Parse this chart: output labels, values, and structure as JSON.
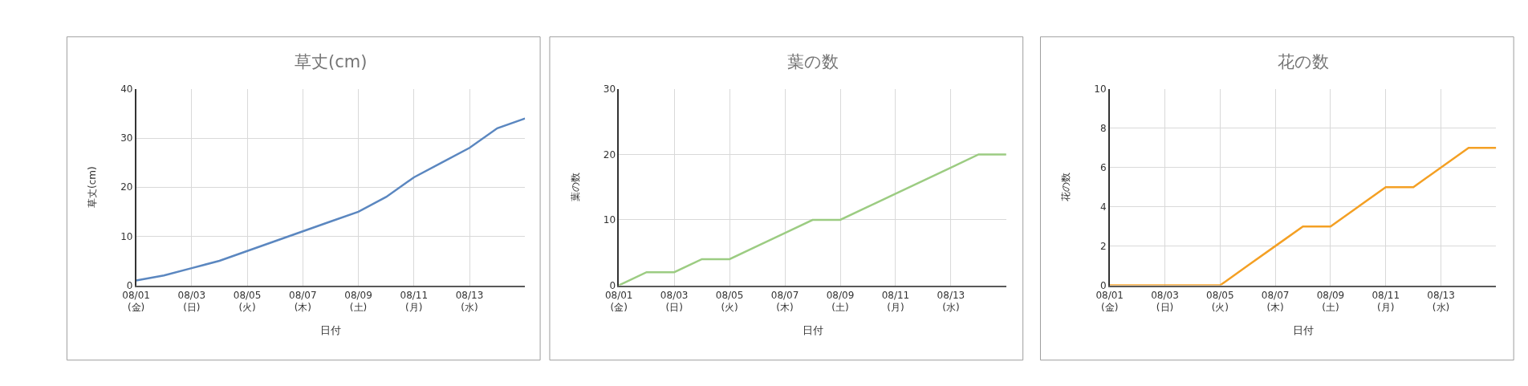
{
  "chart_data": [
    {
      "type": "line",
      "title": "草丈(cm)",
      "xlabel": "日付",
      "ylabel": "草丈(cm)",
      "categories": [
        "08/01\n(金)",
        null,
        "08/03\n(日)",
        null,
        "08/05\n(火)",
        null,
        "08/07\n(木)",
        null,
        "08/09\n(土)",
        null,
        "08/11\n(月)",
        null,
        "08/13\n(水)",
        null,
        null
      ],
      "series": [
        {
          "color": "#5b87c0",
          "values": [
            1,
            2,
            3.5,
            5,
            7,
            9,
            11,
            13,
            15,
            18,
            22,
            25,
            28,
            32,
            34
          ]
        }
      ],
      "ylim": [
        0,
        40
      ],
      "yticks": [
        0,
        10,
        20,
        30,
        40
      ],
      "grid": true,
      "marker": "none",
      "line_style": "solid"
    },
    {
      "type": "line",
      "title": "葉の数",
      "xlabel": "日付",
      "ylabel": "葉の数",
      "categories": [
        "08/01\n(金)",
        null,
        "08/03\n(日)",
        null,
        "08/05\n(火)",
        null,
        "08/07\n(木)",
        null,
        "08/09\n(土)",
        null,
        "08/11\n(月)",
        null,
        "08/13\n(水)",
        null,
        null
      ],
      "series": [
        {
          "color": "#9ccc82",
          "values": [
            0,
            2,
            2,
            4,
            4,
            6,
            8,
            10,
            10,
            12,
            14,
            16,
            18,
            20,
            20
          ]
        }
      ],
      "ylim": [
        0,
        30
      ],
      "yticks": [
        0,
        10,
        20,
        30
      ],
      "grid": true,
      "marker": "none",
      "line_style": "solid"
    },
    {
      "type": "line",
      "title": "花の数",
      "xlabel": "日付",
      "ylabel": "花の数",
      "categories": [
        "08/01\n(金)",
        null,
        "08/03\n(日)",
        null,
        "08/05\n(火)",
        null,
        "08/07\n(木)",
        null,
        "08/09\n(土)",
        null,
        "08/11\n(月)",
        null,
        "08/13\n(水)",
        null,
        null
      ],
      "series": [
        {
          "color": "#f4a024",
          "values": [
            0,
            0,
            0,
            0,
            0,
            1,
            2,
            3,
            3,
            4,
            5,
            5,
            6,
            7,
            7
          ]
        }
      ],
      "ylim": [
        0,
        10
      ],
      "yticks": [
        0,
        2,
        4,
        6,
        8,
        10
      ],
      "grid": true,
      "marker": "none",
      "line_style": "solid"
    }
  ]
}
